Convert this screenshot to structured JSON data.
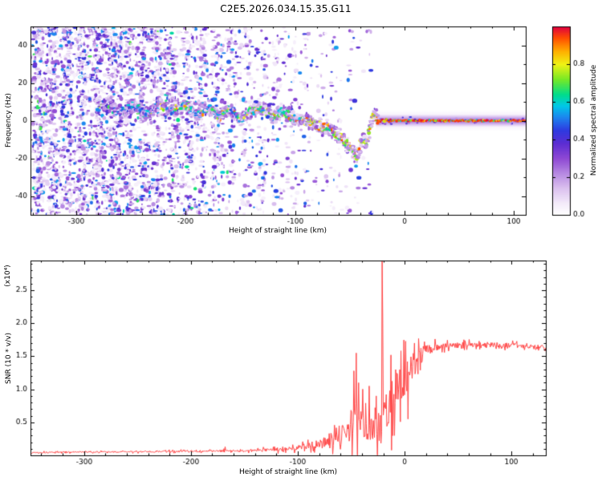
{
  "title": "C2E5.2026.034.15.35.G11",
  "colors": {
    "background": "#ffffff",
    "axis": "#000000",
    "snr_line": "#ff4545"
  },
  "chart_data": [
    {
      "type": "heatmap",
      "title": "",
      "xlabel": "Height of straight line (km)",
      "ylabel": "Frequency (Hz)",
      "xlim": [
        -342,
        111
      ],
      "ylim": [
        -50,
        50
      ],
      "xticks": [
        -300,
        -200,
        -100,
        0,
        100
      ],
      "yticks": [
        -40,
        -20,
        0,
        20,
        40
      ],
      "grid": false,
      "colorbar": {
        "label": "Normalized spectral amplitude",
        "ticks": [
          0.0,
          0.2,
          0.4,
          0.6,
          0.8
        ],
        "lim": [
          0,
          1
        ]
      },
      "colormap_stops": [
        [
          0.0,
          "#ffffff"
        ],
        [
          0.06,
          "#f4ecfa"
        ],
        [
          0.14,
          "#dcc2ef"
        ],
        [
          0.22,
          "#b78ae2"
        ],
        [
          0.3,
          "#8f49d4"
        ],
        [
          0.38,
          "#5c2dd2"
        ],
        [
          0.45,
          "#2e3ae0"
        ],
        [
          0.52,
          "#1d86ef"
        ],
        [
          0.58,
          "#00c8e8"
        ],
        [
          0.64,
          "#00dd8b"
        ],
        [
          0.72,
          "#76e926"
        ],
        [
          0.8,
          "#eff215"
        ],
        [
          0.87,
          "#ffae00"
        ],
        [
          0.94,
          "#ff4e00"
        ],
        [
          1.0,
          "#e0003f"
        ]
      ],
      "signal_trace_hz_vs_km": [
        [
          -342,
          4
        ],
        [
          -320,
          6
        ],
        [
          -300,
          2
        ],
        [
          -285,
          7
        ],
        [
          -272,
          9
        ],
        [
          -260,
          4
        ],
        [
          -248,
          8
        ],
        [
          -236,
          3
        ],
        [
          -224,
          9
        ],
        [
          -212,
          5
        ],
        [
          -200,
          8
        ],
        [
          -190,
          3
        ],
        [
          -180,
          7
        ],
        [
          -170,
          2
        ],
        [
          -160,
          6
        ],
        [
          -150,
          1
        ],
        [
          -140,
          5
        ],
        [
          -130,
          7
        ],
        [
          -120,
          2
        ],
        [
          -110,
          5
        ],
        [
          -100,
          1
        ],
        [
          -90,
          0
        ],
        [
          -80,
          -2
        ],
        [
          -70,
          -4
        ],
        [
          -62,
          -7
        ],
        [
          -55,
          -11
        ],
        [
          -48,
          -16
        ],
        [
          -44,
          -19
        ],
        [
          -41,
          -13
        ],
        [
          -38,
          -8
        ],
        [
          -35,
          -12
        ],
        [
          -32,
          -4
        ],
        [
          -29,
          2
        ],
        [
          -27,
          4
        ],
        [
          -25,
          1
        ],
        [
          -24,
          0
        ],
        [
          0,
          0
        ],
        [
          111,
          0
        ]
      ],
      "noise": {
        "seed": 77,
        "count": 9500,
        "region_km": [
          -342,
          -25
        ]
      },
      "flat_signal_km": [
        -24,
        111
      ]
    },
    {
      "type": "line",
      "xlabel": "Height of straight line (km)",
      "ylabel": "SNR (10 * v/v)",
      "scale_label": "(x10⁴)",
      "xlim": [
        -350,
        132
      ],
      "ylim": [
        0,
        2.95
      ],
      "xticks": [
        -300,
        -200,
        -100,
        0,
        100
      ],
      "yticks": [
        0.5,
        1.0,
        1.5,
        2.0,
        2.5
      ],
      "grid": false,
      "seed": 13,
      "profile_x_base_noise": [
        [
          -350,
          0.045,
          0.012
        ],
        [
          -300,
          0.05,
          0.012
        ],
        [
          -250,
          0.055,
          0.015
        ],
        [
          -210,
          0.06,
          0.018
        ],
        [
          -175,
          0.065,
          0.02
        ],
        [
          -145,
          0.07,
          0.025
        ],
        [
          -120,
          0.085,
          0.035
        ],
        [
          -100,
          0.11,
          0.05
        ],
        [
          -90,
          0.14,
          0.07
        ],
        [
          -80,
          0.18,
          0.1
        ],
        [
          -70,
          0.24,
          0.14
        ],
        [
          -60,
          0.33,
          0.2
        ],
        [
          -52,
          0.42,
          0.28
        ],
        [
          -46,
          0.55,
          0.38
        ],
        [
          -40,
          0.5,
          0.32
        ],
        [
          -34,
          0.42,
          0.26
        ],
        [
          -28,
          0.45,
          0.3
        ],
        [
          -24,
          0.5,
          0.38
        ],
        [
          -20,
          0.55,
          0.38
        ],
        [
          -16,
          0.65,
          0.42
        ],
        [
          -12,
          0.85,
          0.45
        ],
        [
          -8,
          1.0,
          0.42
        ],
        [
          -4,
          1.1,
          0.38
        ],
        [
          0,
          1.18,
          0.36
        ],
        [
          6,
          1.32,
          0.3
        ],
        [
          12,
          1.46,
          0.22
        ],
        [
          18,
          1.56,
          0.14
        ],
        [
          26,
          1.63,
          0.08
        ],
        [
          40,
          1.66,
          0.055
        ],
        [
          70,
          1.68,
          0.05
        ],
        [
          100,
          1.67,
          0.05
        ],
        [
          132,
          1.63,
          0.05
        ]
      ],
      "spikes": [
        [
          -21,
          2.95
        ],
        [
          -20.3,
          2.1
        ],
        [
          -45.5,
          1.55
        ],
        [
          -47.5,
          1.28
        ],
        [
          -43,
          1.1
        ],
        [
          -33,
          1.05
        ],
        [
          -26.5,
          0.9
        ],
        [
          -168,
          0.13
        ],
        [
          -13,
          1.52
        ],
        [
          -9.5,
          0.3
        ],
        [
          3,
          0.55
        ],
        [
          9,
          1.7
        ]
      ]
    }
  ]
}
